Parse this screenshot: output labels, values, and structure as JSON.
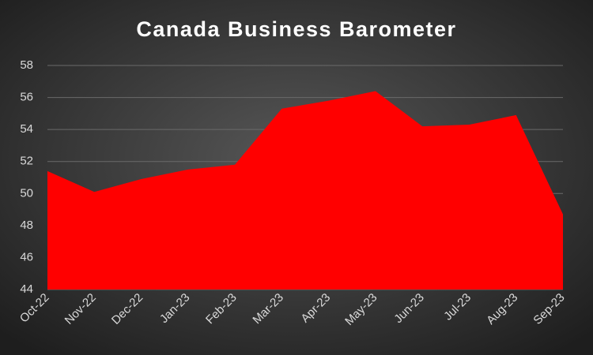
{
  "chart_data": {
    "type": "area",
    "title": "Canada Business Barometer",
    "categories": [
      "Oct-22",
      "Nov-22",
      "Dec-22",
      "Jan-23",
      "Feb-23",
      "Mar-23",
      "Apr-23",
      "May-23",
      "Jun-23",
      "Jul-23",
      "Aug-23",
      "Sep-23"
    ],
    "values": [
      51.4,
      50.1,
      50.9,
      51.5,
      51.8,
      55.3,
      55.8,
      56.4,
      54.2,
      54.3,
      54.9,
      48.7
    ],
    "color": "#ff0000",
    "ylim": [
      44,
      58
    ],
    "yticks": [
      44,
      46,
      48,
      50,
      52,
      54,
      56,
      58
    ],
    "grid": true
  }
}
